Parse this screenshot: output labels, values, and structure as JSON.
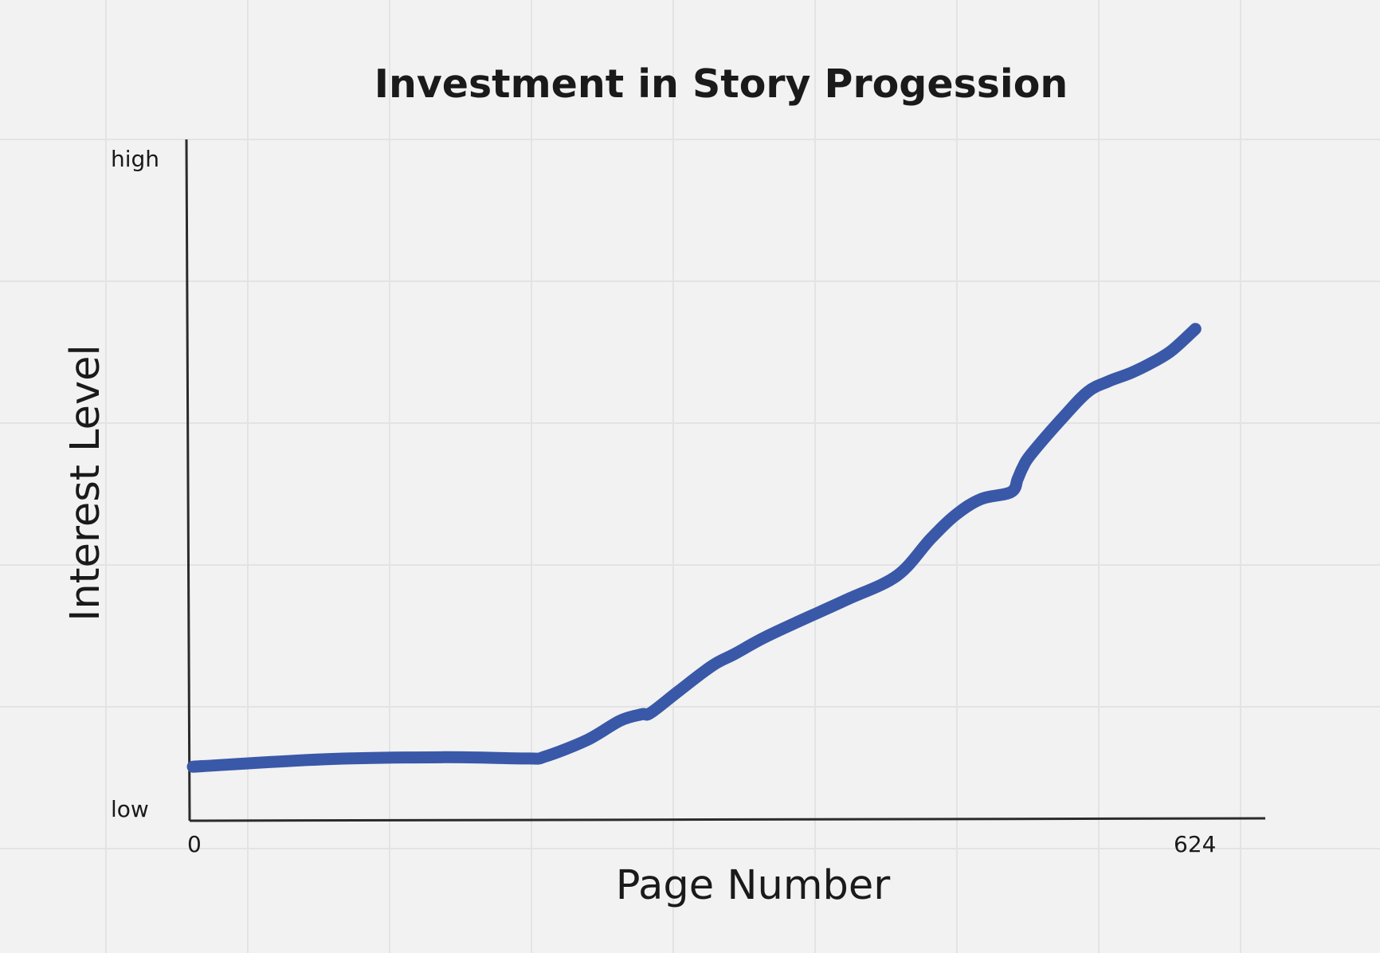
{
  "chart_data": {
    "type": "line",
    "title": "Investment in Story Progession",
    "xlabel": "Page Number",
    "ylabel": "Interest Level",
    "x_tick_labels": [
      "0",
      "624"
    ],
    "y_tick_labels": [
      "low",
      "high"
    ],
    "xlim": [
      0,
      624
    ],
    "ylim": [
      0,
      100
    ],
    "grid": true,
    "legend": "none",
    "series": [
      {
        "color": "#3a58a8",
        "points": [
          [
            0,
            4
          ],
          [
            80,
            5.2
          ],
          [
            150,
            5.5
          ],
          [
            200,
            5.3
          ],
          [
            210,
            5.6
          ],
          [
            235,
            8.2
          ],
          [
            255,
            11.3
          ],
          [
            268,
            12.3
          ],
          [
            273,
            12.5
          ],
          [
            290,
            16.0
          ],
          [
            310,
            20.0
          ],
          [
            323,
            21.8
          ],
          [
            340,
            24.3
          ],
          [
            360,
            26.8
          ],
          [
            390,
            30.4
          ],
          [
            420,
            34.2
          ],
          [
            440,
            40.0
          ],
          [
            455,
            43.8
          ],
          [
            470,
            46.3
          ],
          [
            488,
            47.4
          ],
          [
            492,
            49.5
          ],
          [
            495,
            51.3
          ],
          [
            500,
            53.4
          ],
          [
            520,
            59.5
          ],
          [
            534,
            63.3
          ],
          [
            546,
            64.9
          ],
          [
            560,
            66.3
          ],
          [
            573,
            68.0
          ],
          [
            584,
            69.8
          ],
          [
            598,
            73.2
          ]
        ]
      }
    ]
  }
}
